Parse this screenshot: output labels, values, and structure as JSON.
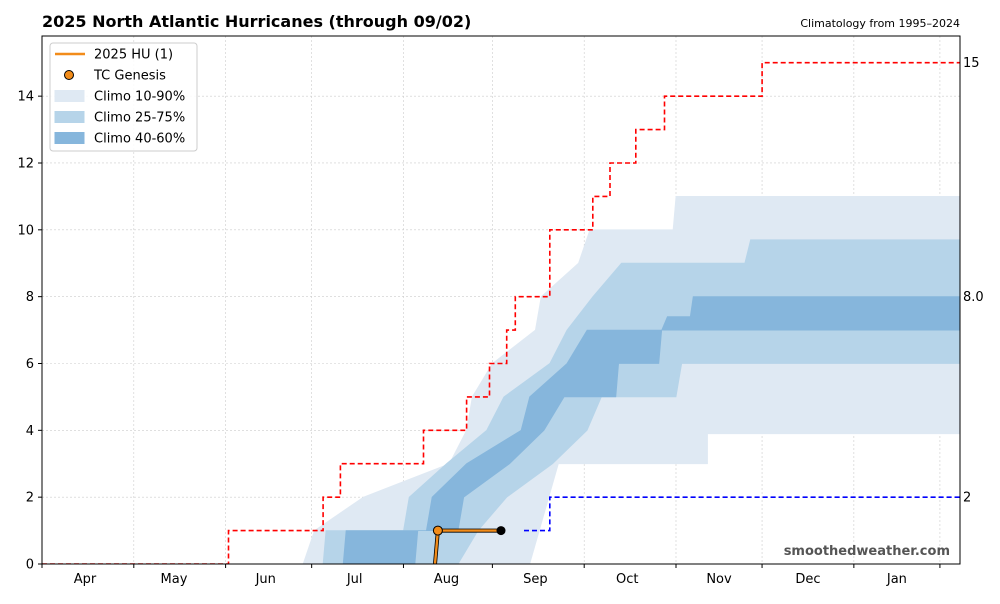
{
  "chart_data": {
    "type": "line",
    "title": "2025 North Atlantic Hurricanes (through 09/02)",
    "subtitle": "Climatology from 1995–2024",
    "watermark": "smoothedweather.com",
    "xlabel": "",
    "ylabel": "",
    "x_axis": {
      "unit": "day of season (0 = Mar 15)",
      "range": [
        0,
        320
      ],
      "ticks": [
        0,
        32,
        64,
        94,
        126,
        157,
        189,
        221,
        251,
        283,
        313,
        345
      ],
      "month_labels": [
        {
          "x": 15,
          "text": "Apr"
        },
        {
          "x": 46,
          "text": "May"
        },
        {
          "x": 78,
          "text": "Jun"
        },
        {
          "x": 109,
          "text": "Jul"
        },
        {
          "x": 141,
          "text": "Aug"
        },
        {
          "x": 172,
          "text": "Sep"
        },
        {
          "x": 204,
          "text": "Oct"
        },
        {
          "x": 236,
          "text": "Nov"
        },
        {
          "x": 267,
          "text": "Dec"
        },
        {
          "x": 298,
          "text": "Jan"
        }
      ]
    },
    "y_axis": {
      "range": [
        0,
        15.8
      ],
      "ticks": [
        0,
        2,
        4,
        6,
        8,
        10,
        12,
        14
      ]
    },
    "grid": true,
    "legend": {
      "placement": "top-left",
      "entries": [
        {
          "label": "2025 HU (1)",
          "kind": "line",
          "color": "#f28c1a"
        },
        {
          "label": "TC Genesis",
          "kind": "marker",
          "color": "#f28c1a"
        },
        {
          "label": "Climo 10-90%",
          "kind": "band",
          "color": "#dfe9f3"
        },
        {
          "label": "Climo 25-75%",
          "kind": "band",
          "color": "#b6d4e9"
        },
        {
          "label": "Climo 40-60%",
          "kind": "band",
          "color": "#86b6dc"
        }
      ]
    },
    "right_labels": [
      {
        "value": 15,
        "text": "15"
      },
      {
        "value": 8,
        "text": "8.0"
      },
      {
        "value": 2,
        "text": "2"
      }
    ],
    "series": [
      {
        "name": "2025 HU (1)",
        "color": "#f28c1a",
        "points": [
          [
            137,
            0
          ],
          [
            138,
            1
          ],
          [
            160,
            1
          ]
        ],
        "genesis": [
          {
            "x": 138,
            "y": 1
          }
        ],
        "end_marker": {
          "x": 160,
          "y": 1
        }
      },
      {
        "color": "#ff0000",
        "style": "dashed",
        "steps": [
          [
            0,
            0
          ],
          [
            65,
            1
          ],
          [
            98,
            2
          ],
          [
            104,
            3
          ],
          [
            133,
            4
          ],
          [
            148,
            5
          ],
          [
            156,
            6
          ],
          [
            162,
            7
          ],
          [
            165,
            8
          ],
          [
            177,
            10
          ],
          [
            192,
            11
          ],
          [
            198,
            12
          ],
          [
            207,
            13
          ],
          [
            217,
            14
          ],
          [
            251,
            15
          ],
          [
            320,
            15
          ]
        ]
      },
      {
        "color": "#0000ff",
        "style": "dashed",
        "steps": [
          [
            168,
            1
          ],
          [
            177,
            2
          ],
          [
            320,
            2
          ]
        ]
      }
    ],
    "bands": [
      {
        "name": "Climo 10-90%",
        "color": "#dfe9f3",
        "lower": [
          [
            91,
            0
          ],
          [
            138,
            0
          ],
          [
            150,
            0
          ],
          [
            161,
            0
          ],
          [
            170,
            0
          ],
          [
            180,
            3
          ],
          [
            195,
            3
          ],
          [
            232,
            3
          ],
          [
            232,
            3.9
          ],
          [
            320,
            3.9
          ]
        ],
        "upper": [
          [
            91,
            0
          ],
          [
            95,
            1
          ],
          [
            112,
            2
          ],
          [
            142,
            3
          ],
          [
            148,
            4
          ],
          [
            150,
            5
          ],
          [
            157,
            6
          ],
          [
            172,
            7
          ],
          [
            174,
            8
          ],
          [
            187,
            9
          ],
          [
            191,
            10
          ],
          [
            220,
            10
          ],
          [
            221,
            11
          ],
          [
            320,
            11
          ]
        ]
      },
      {
        "name": "Climo 25-75%",
        "color": "#b6d4e9",
        "lower": [
          [
            98,
            0
          ],
          [
            145,
            0
          ],
          [
            152,
            1
          ],
          [
            162,
            2
          ],
          [
            178,
            3
          ],
          [
            190,
            4
          ],
          [
            195,
            5
          ],
          [
            221,
            5
          ],
          [
            223,
            6
          ],
          [
            320,
            6
          ]
        ],
        "upper": [
          [
            98,
            0
          ],
          [
            99,
            1
          ],
          [
            126,
            1
          ],
          [
            128,
            2
          ],
          [
            141,
            3
          ],
          [
            155,
            4
          ],
          [
            161,
            5
          ],
          [
            177,
            6
          ],
          [
            183,
            7
          ],
          [
            192,
            8
          ],
          [
            202,
            9
          ],
          [
            245,
            9
          ],
          [
            247,
            9.7
          ],
          [
            320,
            9.7
          ]
        ]
      },
      {
        "name": "Climo 40-60%",
        "color": "#86b6dc",
        "lower": [
          [
            105,
            0
          ],
          [
            130,
            0
          ],
          [
            131,
            1
          ],
          [
            145,
            1
          ],
          [
            147,
            2
          ],
          [
            163,
            3
          ],
          [
            175,
            4
          ],
          [
            182,
            5
          ],
          [
            200,
            5
          ],
          [
            201,
            6
          ],
          [
            215,
            6
          ],
          [
            216,
            7
          ],
          [
            320,
            7
          ]
        ],
        "upper": [
          [
            105,
            0
          ],
          [
            106,
            1
          ],
          [
            134,
            1
          ],
          [
            136,
            2
          ],
          [
            148,
            3
          ],
          [
            167,
            4
          ],
          [
            170,
            5
          ],
          [
            183,
            6
          ],
          [
            190,
            7
          ],
          [
            216,
            7
          ],
          [
            218,
            7.4
          ],
          [
            226,
            7.4
          ],
          [
            227,
            8
          ],
          [
            320,
            8
          ]
        ]
      }
    ]
  }
}
